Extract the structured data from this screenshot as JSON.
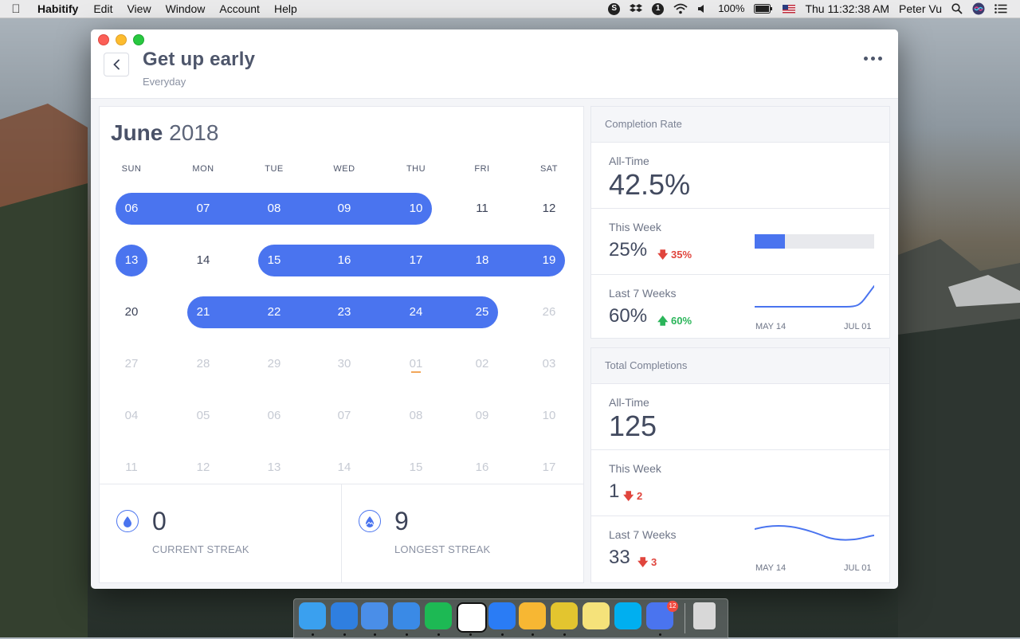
{
  "menubar": {
    "app_name": "Habitify",
    "menus": [
      "Edit",
      "View",
      "Window",
      "Account",
      "Help"
    ],
    "battery": "100%",
    "clock": "Thu 11:32:38 AM",
    "user": "Peter Vu"
  },
  "habit": {
    "title": "Get up early",
    "frequency": "Everyday"
  },
  "calendar": {
    "month": "June",
    "year": "2018",
    "weekdays": [
      "SUN",
      "MON",
      "TUE",
      "WED",
      "THU",
      "FRI",
      "SAT"
    ],
    "weeks": [
      [
        {
          "d": "06",
          "s": "on"
        },
        {
          "d": "07",
          "s": "on"
        },
        {
          "d": "08",
          "s": "on"
        },
        {
          "d": "09",
          "s": "on"
        },
        {
          "d": "10",
          "s": "on"
        },
        {
          "d": "11",
          "s": "off"
        },
        {
          "d": "12",
          "s": "off"
        }
      ],
      [
        {
          "d": "13",
          "s": "on"
        },
        {
          "d": "14",
          "s": "off"
        },
        {
          "d": "15",
          "s": "on"
        },
        {
          "d": "16",
          "s": "on"
        },
        {
          "d": "17",
          "s": "on"
        },
        {
          "d": "18",
          "s": "on"
        },
        {
          "d": "19",
          "s": "on"
        }
      ],
      [
        {
          "d": "20",
          "s": "off"
        },
        {
          "d": "21",
          "s": "on"
        },
        {
          "d": "22",
          "s": "on"
        },
        {
          "d": "23",
          "s": "on"
        },
        {
          "d": "24",
          "s": "on"
        },
        {
          "d": "25",
          "s": "on"
        },
        {
          "d": "26",
          "s": "dim"
        }
      ],
      [
        {
          "d": "27",
          "s": "dim"
        },
        {
          "d": "28",
          "s": "dim"
        },
        {
          "d": "29",
          "s": "dim"
        },
        {
          "d": "30",
          "s": "dim"
        },
        {
          "d": "01",
          "s": "today"
        },
        {
          "d": "02",
          "s": "dim"
        },
        {
          "d": "03",
          "s": "dim"
        }
      ],
      [
        {
          "d": "04",
          "s": "dim"
        },
        {
          "d": "05",
          "s": "dim"
        },
        {
          "d": "06",
          "s": "dim"
        },
        {
          "d": "07",
          "s": "dim"
        },
        {
          "d": "08",
          "s": "dim"
        },
        {
          "d": "09",
          "s": "dim"
        },
        {
          "d": "10",
          "s": "dim"
        }
      ],
      [
        {
          "d": "11",
          "s": "dim"
        },
        {
          "d": "12",
          "s": "dim"
        },
        {
          "d": "13",
          "s": "dim"
        },
        {
          "d": "14",
          "s": "dim"
        },
        {
          "d": "15",
          "s": "dim"
        },
        {
          "d": "16",
          "s": "dim"
        },
        {
          "d": "17",
          "s": "dim"
        }
      ]
    ]
  },
  "streaks": {
    "current": {
      "value": "0",
      "label": "CURRENT STREAK",
      "icon": "drop-icon"
    },
    "longest": {
      "value": "9",
      "label": "LONGEST STREAK",
      "icon": "mountain-drop-icon"
    }
  },
  "completion_rate": {
    "header": "Completion Rate",
    "all_time": {
      "label": "All-Time",
      "value": "42.5%"
    },
    "this_week": {
      "label": "This Week",
      "value": "25%",
      "change": "35%",
      "direction": "down",
      "progress": 0.25
    },
    "last_7_weeks": {
      "label": "Last 7 Weeks",
      "value": "60%",
      "change": "60%",
      "direction": "up",
      "x_start": "MAY 14",
      "x_end": "JUL 01"
    }
  },
  "total_completions": {
    "header": "Total Completions",
    "all_time": {
      "label": "All-Time",
      "value": "125"
    },
    "this_week": {
      "label": "This Week",
      "value": "1",
      "change": "2",
      "direction": "down"
    },
    "last_7_weeks": {
      "label": "Last 7 Weeks",
      "value": "33",
      "change": "3",
      "direction": "down",
      "x_start": "MAY 14",
      "x_end": "JUL 01"
    }
  },
  "colors": {
    "accent": "#4a74ef",
    "down": "#e0453d",
    "up": "#2bb55a"
  },
  "dock": {
    "apps": [
      "finder-icon",
      "safari-icon",
      "xcode-icon",
      "simulator-icon",
      "spotify-icon",
      "notion-icon",
      "spark-mail-icon",
      "sketch-icon",
      "wunderlist-icon",
      "notes-icon",
      "skype-icon",
      "habitify-icon",
      "trash-icon"
    ],
    "badge": "12"
  }
}
